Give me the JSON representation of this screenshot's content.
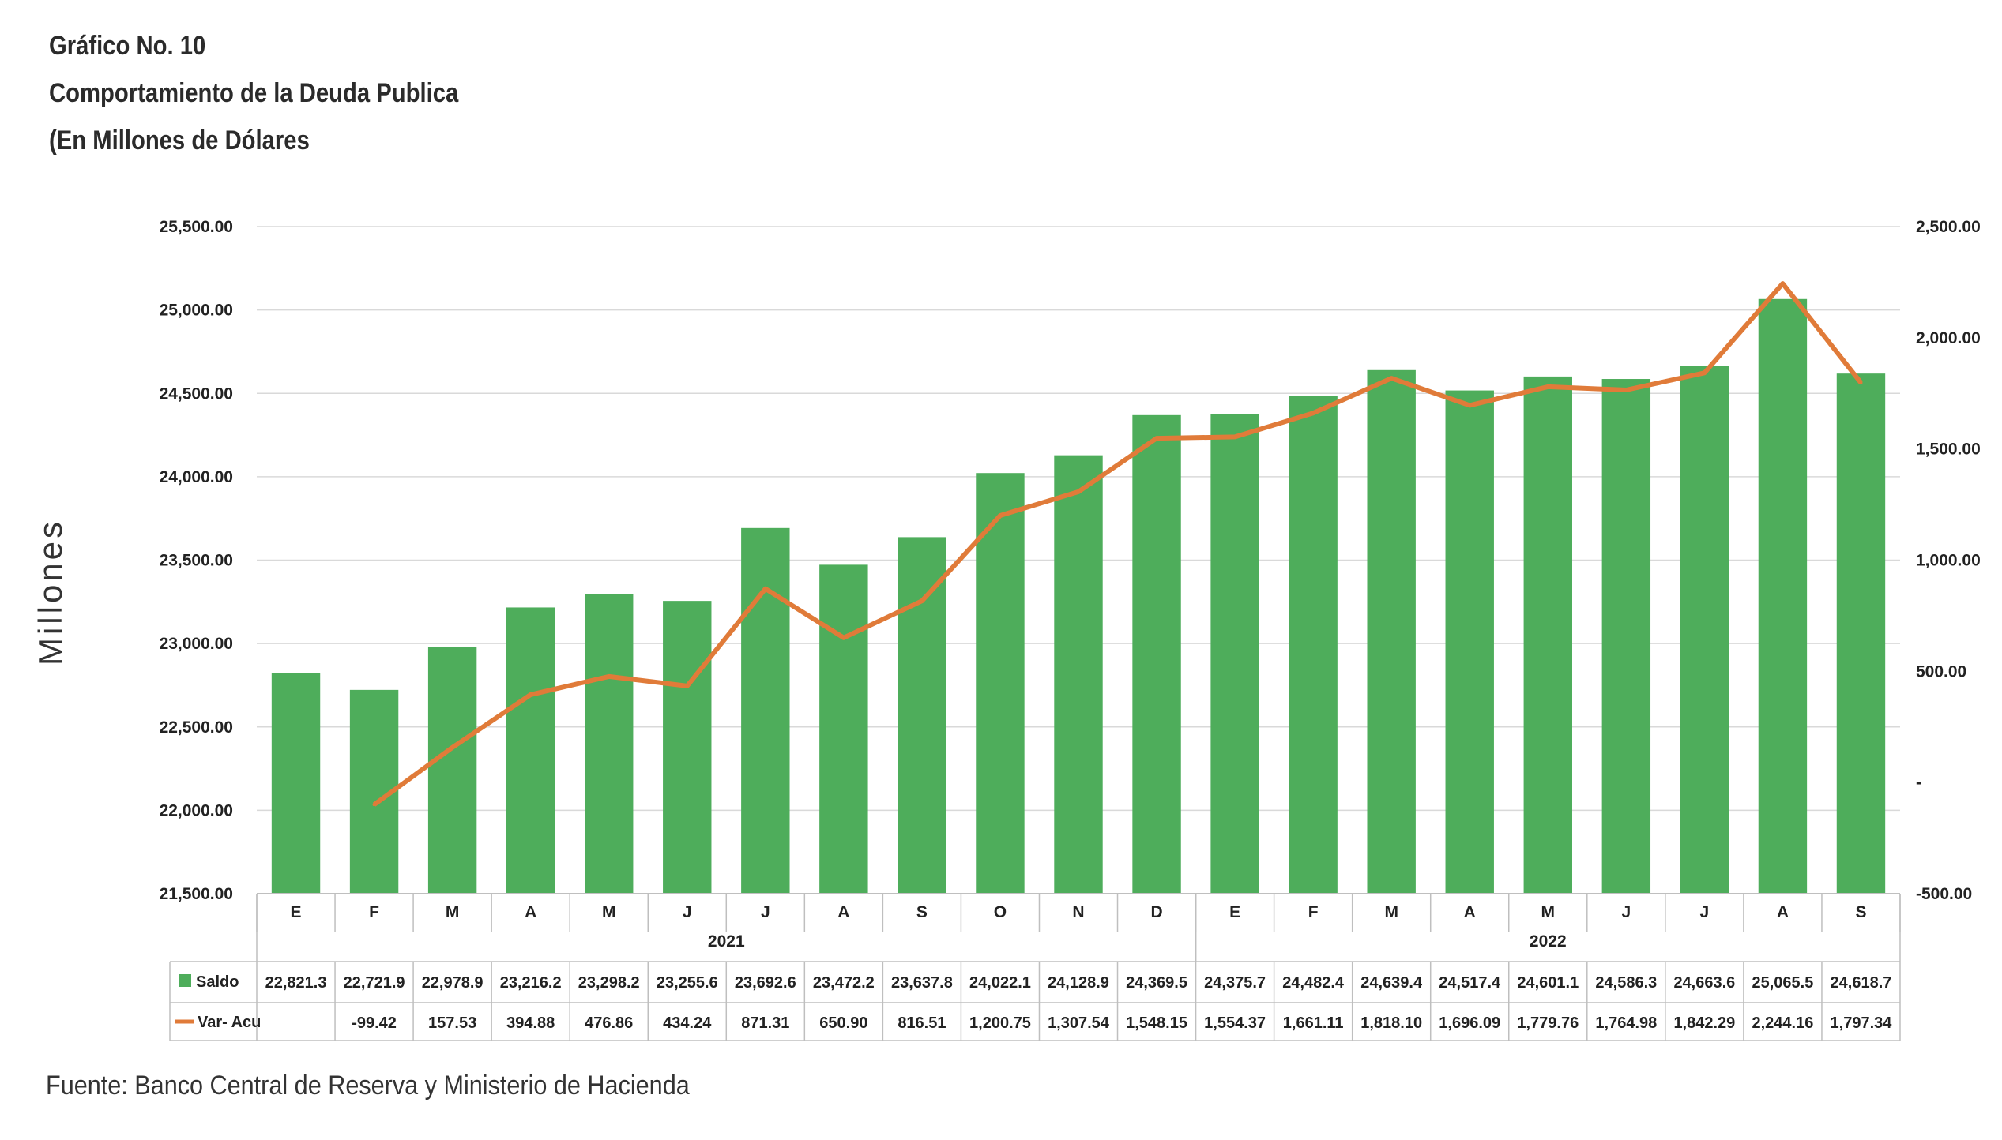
{
  "title": {
    "line1": "Gráfico No. 10",
    "line2": "Comportamiento de la Deuda Publica",
    "line3": "(En Millones de Dólares"
  },
  "source": "Fuente: Banco Central de Reserva y Ministerio de Hacienda",
  "colors": {
    "bar": "#4ead5b",
    "line": "#e07b39",
    "grid": "#d9d9d9",
    "axis": "#bfbfbf"
  },
  "chart_data": {
    "type": "bar",
    "ylabel": "Millones",
    "ylim": [
      21500,
      25500
    ],
    "y2lim": [
      -500,
      2500
    ],
    "left_ticks": [
      "25,500.00",
      "25,000.00",
      "24,500.00",
      "24,000.00",
      "23,500.00",
      "23,000.00",
      "22,500.00",
      "22,000.00",
      "21,500.00"
    ],
    "right_ticks": [
      "2,500.00",
      "2,000.00",
      "1,500.00",
      "1,000.00",
      "500.00",
      "-",
      "-500.00"
    ],
    "grid": true,
    "categories": [
      "E",
      "F",
      "M",
      "A",
      "M",
      "J",
      "J",
      "A",
      "S",
      "O",
      "N",
      "D",
      "E",
      "F",
      "M",
      "A",
      "M",
      "J",
      "J",
      "A",
      "S"
    ],
    "groups": [
      {
        "label": "2021",
        "count": 12
      },
      {
        "label": "2022",
        "count": 9
      }
    ],
    "series": [
      {
        "name": "Saldo",
        "type": "bar",
        "axis": "left",
        "values": [
          22821.3,
          22721.9,
          22978.9,
          23216.2,
          23298.2,
          23255.6,
          23692.6,
          23472.2,
          23637.8,
          24022.1,
          24128.9,
          24369.5,
          24375.7,
          24482.4,
          24639.4,
          24517.4,
          24601.1,
          24586.3,
          24663.6,
          25065.5,
          24618.7
        ],
        "labels": [
          "22,821.3",
          "22,721.9",
          "22,978.9",
          "23,216.2",
          "23,298.2",
          "23,255.6",
          "23,692.6",
          "23,472.2",
          "23,637.8",
          "24,022.1",
          "24,128.9",
          "24,369.5",
          "24,375.7",
          "24,482.4",
          "24,639.4",
          "24,517.4",
          "24,601.1",
          "24,586.3",
          "24,663.6",
          "25,065.5",
          "24,618.7"
        ]
      },
      {
        "name": "Var- Acu",
        "type": "line",
        "axis": "right",
        "values": [
          null,
          -99.42,
          157.53,
          394.88,
          476.86,
          434.24,
          871.31,
          650.9,
          816.51,
          1200.75,
          1307.54,
          1548.15,
          1554.37,
          1661.11,
          1818.1,
          1696.09,
          1779.76,
          1764.98,
          1842.29,
          2244.16,
          1797.34
        ],
        "labels": [
          "",
          "-99.42",
          "157.53",
          "394.88",
          "476.86",
          "434.24",
          "871.31",
          "650.90",
          "816.51",
          "1,200.75",
          "1,307.54",
          "1,548.15",
          "1,554.37",
          "1,661.11",
          "1,818.10",
          "1,696.09",
          "1,779.76",
          "1,764.98",
          "1,842.29",
          "2,244.16",
          "1,797.34"
        ]
      }
    ]
  }
}
